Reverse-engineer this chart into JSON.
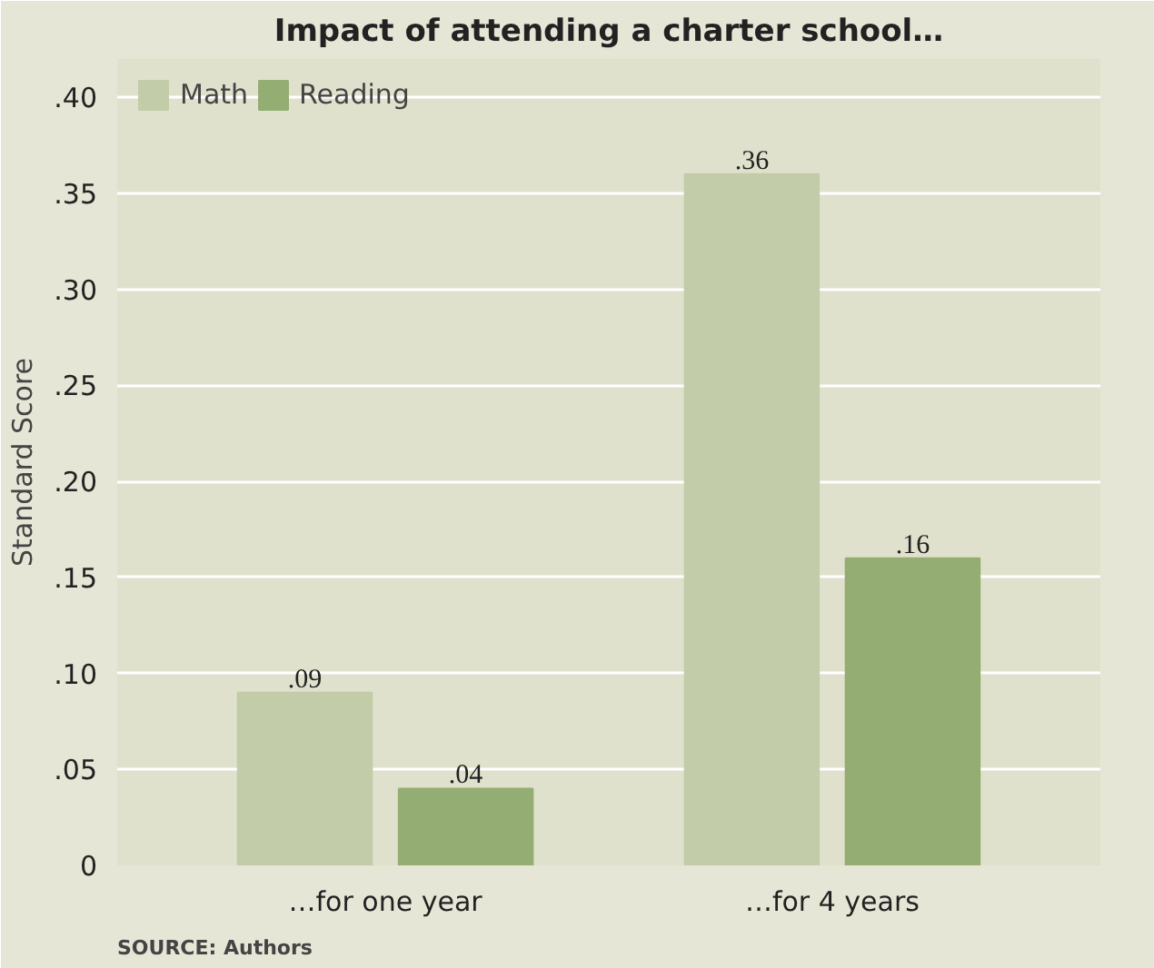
{
  "chart_data": {
    "type": "bar",
    "title": "Impact of attending a charter school…",
    "ylabel": "Standard Score",
    "categories": [
      "…for one year",
      "…for 4 years"
    ],
    "series": [
      {
        "name": "Math",
        "color": "#c2cca8",
        "values": [
          0.09,
          0.36
        ],
        "value_labels": [
          ".09",
          ".36"
        ]
      },
      {
        "name": "Reading",
        "color": "#94ad72",
        "values": [
          0.04,
          0.16
        ],
        "value_labels": [
          ".04",
          ".16"
        ]
      }
    ],
    "ylim": [
      0,
      0.42
    ],
    "yticks": [
      {
        "value": 0,
        "label": "0"
      },
      {
        "value": 0.05,
        "label": ".05"
      },
      {
        "value": 0.1,
        "label": ".10"
      },
      {
        "value": 0.15,
        "label": ".15"
      },
      {
        "value": 0.2,
        "label": ".20"
      },
      {
        "value": 0.25,
        "label": ".25"
      },
      {
        "value": 0.3,
        "label": ".30"
      },
      {
        "value": 0.35,
        "label": ".35"
      },
      {
        "value": 0.4,
        "label": ".40"
      }
    ],
    "grid": "y",
    "legend": "top left",
    "annotations": [
      "SOURCE: Authors"
    ]
  }
}
